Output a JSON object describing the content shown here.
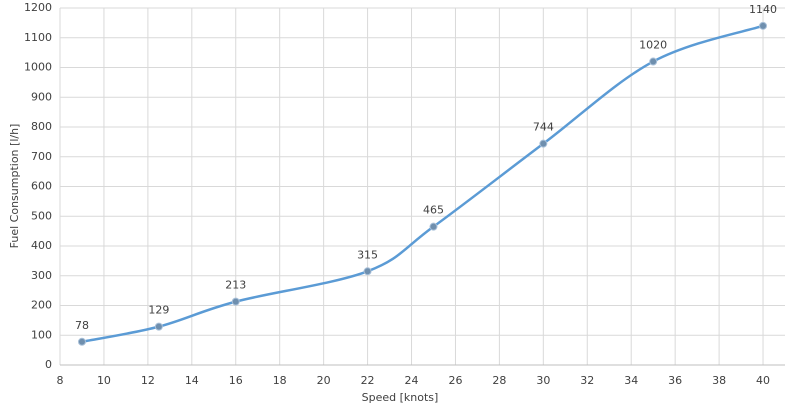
{
  "chart_data": {
    "type": "line",
    "x_label": "Speed [knots]",
    "y_label": "Fuel Consumption  [l/h]",
    "x": [
      9,
      12.5,
      16,
      22,
      25,
      30,
      35,
      40
    ],
    "values": [
      78,
      129,
      213,
      315,
      465,
      744,
      1020,
      1140
    ],
    "color": "#5b9bd5",
    "marker_color": "#6f8fae",
    "xlim": [
      8,
      41
    ],
    "xticks": [
      8,
      10,
      12,
      14,
      16,
      18,
      20,
      22,
      24,
      26,
      28,
      30,
      32,
      34,
      36,
      38,
      40
    ],
    "ylim": [
      0,
      1200
    ],
    "yticks": [
      0,
      100,
      200,
      300,
      400,
      500,
      600,
      700,
      800,
      900,
      1000,
      1100,
      1200
    ],
    "grid": true,
    "smooth": true,
    "data_labels": true
  }
}
